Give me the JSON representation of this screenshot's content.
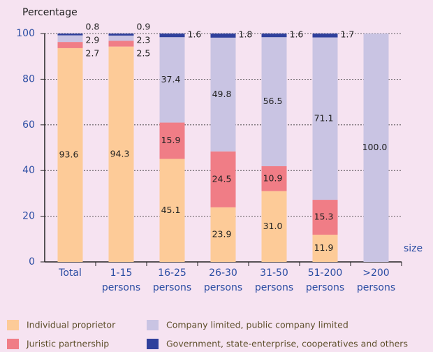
{
  "chart_data": {
    "type": "stacked_bar",
    "y_axis_label": "Percentage",
    "x_axis_label": "size",
    "categories": [
      "Total",
      "1-15 persons",
      "16-25 persons",
      "26-30 persons",
      "31-50 persons",
      "51-200 persons",
      ">200 persons"
    ],
    "ylim": [
      0,
      100
    ],
    "yticks": [
      0,
      20,
      40,
      60,
      80,
      100
    ],
    "grid": true,
    "legend": "bottom",
    "series": [
      {
        "name": "Individual proprietor",
        "color": "#fdcb98",
        "values": [
          93.6,
          94.3,
          45.1,
          23.9,
          31.0,
          11.9,
          null
        ],
        "value_labels": [
          "93.6",
          "94.3",
          "45.1",
          "23.9",
          "31.0",
          "11.9",
          null
        ]
      },
      {
        "name": "Juristic partnership",
        "color": "#f07d86",
        "values": [
          2.7,
          2.5,
          15.9,
          24.5,
          10.9,
          15.3,
          null
        ],
        "value_labels": [
          "2.7",
          "2.5",
          "15.9",
          "24.5",
          "10.9",
          "15.3",
          null
        ]
      },
      {
        "name": "Company limited, public company limited",
        "color": "#c9c4e3",
        "values": [
          2.9,
          2.3,
          37.4,
          49.8,
          56.5,
          71.1,
          100.0
        ],
        "value_labels": [
          "2.9",
          "2.3",
          "37.4",
          "49.8",
          "56.5",
          "71.1",
          "100.0"
        ]
      },
      {
        "name": "Government, state-enterprise, cooperatives and others",
        "color": "#2f409c",
        "values": [
          0.8,
          0.9,
          1.6,
          1.8,
          1.6,
          1.7,
          null
        ],
        "value_labels": [
          "0.8",
          "0.9",
          "1.6",
          "1.8",
          "1.6",
          "1.7",
          null
        ]
      }
    ]
  }
}
